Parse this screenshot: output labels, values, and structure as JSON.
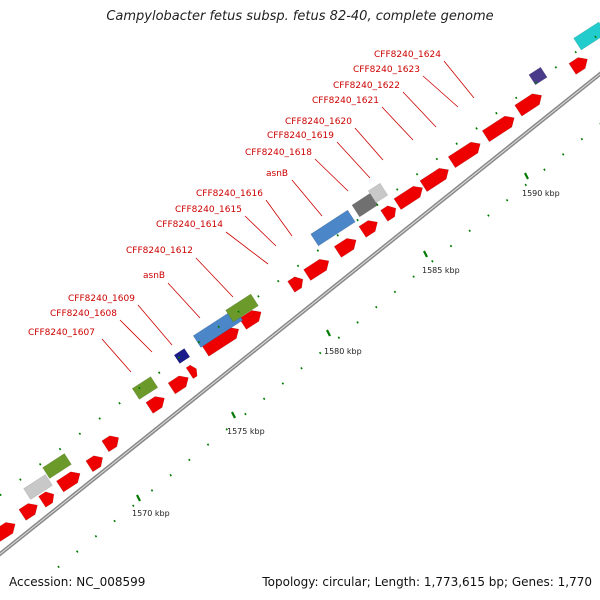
{
  "title": "Campylobacter fetus subsp. fetus 82-40, complete genome",
  "footer": {
    "accession": "Accession: NC_008599",
    "topology": "Topology: circular; Length: 1,773,615 bp; Genes: 1,770"
  },
  "colors": {
    "cds": "#ee0000",
    "gene_blue": "#4a86c8",
    "gene_green": "#6b9a2a",
    "gene_gray": "#c8c8c8",
    "gene_darkgray": "#707070",
    "gene_navy": "#1a1a8a",
    "gene_purple": "#4a3a8a",
    "gene_cyan": "#22cccc",
    "label": "#cc0000",
    "tick": "#007a00",
    "backbone": "#888888"
  },
  "kbp_labels": [
    "1570 kbp",
    "1575 kbp",
    "1580 kbp",
    "1585 kbp",
    "1590 kbp"
  ],
  "gene_labels": [
    "CFF8240_1607",
    "CFF8240_1608",
    "CFF8240_1609",
    "asnB",
    "CFF8240_1612",
    "CFF8240_1614",
    "CFF8240_1615",
    "CFF8240_1616",
    "asnB",
    "CFF8240_1618",
    "CFF8240_1619",
    "CFF8240_1620",
    "CFF8240_1621",
    "CFF8240_1622",
    "CFF8240_1623",
    "CFF8240_1624"
  ]
}
